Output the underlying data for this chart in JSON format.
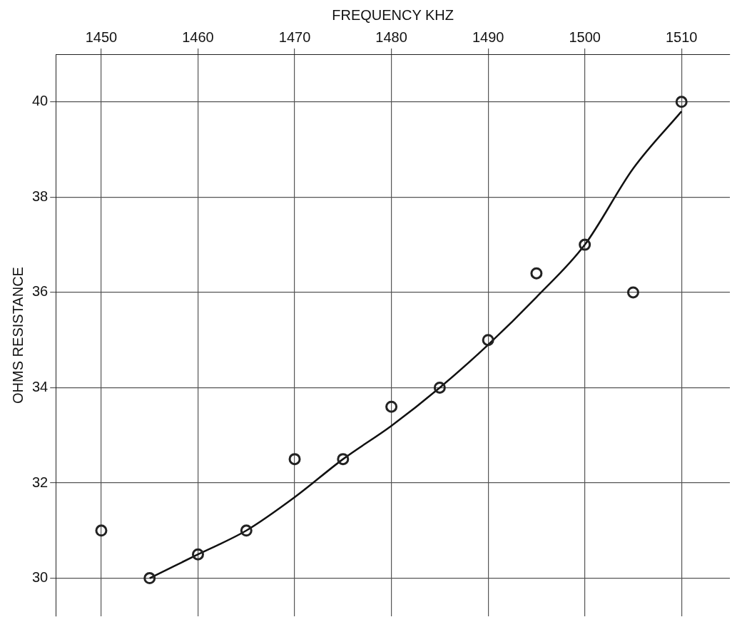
{
  "chart_data": {
    "type": "scatter",
    "xlabel": "FREQUENCY KHZ",
    "ylabel": "OHMS RESISTANCE",
    "xlim": [
      1445.3,
      1515
    ],
    "xticks": [
      1450,
      1460,
      1470,
      1480,
      1490,
      1500,
      1510
    ],
    "ylim": [
      29.2,
      41
    ],
    "yticks": [
      30,
      32,
      34,
      36,
      38,
      40
    ],
    "grid": true,
    "legend": false,
    "marker": "circle",
    "series": [
      {
        "type": "scatter",
        "color": "#222222",
        "x": [
          1450,
          1455,
          1460,
          1465,
          1470,
          1475,
          1480,
          1485,
          1490,
          1495,
          1500,
          1505,
          1510
        ],
        "values": [
          31,
          30,
          30.5,
          31,
          32.5,
          32.5,
          33.6,
          34,
          35,
          36.4,
          37,
          36,
          40
        ]
      },
      {
        "type": "line",
        "color": "#111111",
        "marker": "none",
        "line_style": "solid",
        "x": [
          1455,
          1460,
          1465,
          1470,
          1475,
          1480,
          1485,
          1490,
          1495,
          1500,
          1505,
          1510
        ],
        "values": [
          30,
          30.5,
          31,
          31.7,
          32.5,
          33.2,
          34,
          34.9,
          35.9,
          37,
          38.6,
          39.8
        ]
      }
    ]
  }
}
